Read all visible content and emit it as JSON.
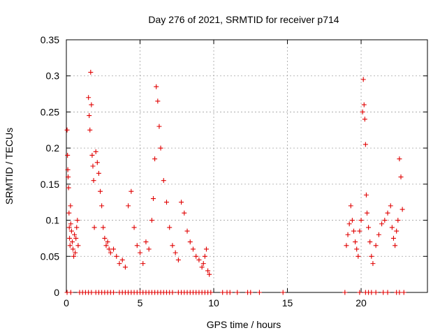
{
  "chart_data": {
    "type": "scatter",
    "title": "Day 276 of 2021, SRMTID for receiver p714",
    "xlabel": "GPS time / hours",
    "ylabel": "SRMTID / TECUs",
    "xlim": [
      0,
      24.5
    ],
    "ylim": [
      0,
      0.35
    ],
    "xticks": [
      0,
      5,
      10,
      15,
      20
    ],
    "xtick_labels": [
      "0",
      "5",
      "10",
      "15",
      "20"
    ],
    "yticks": [
      0,
      0.05,
      0.1,
      0.15,
      0.2,
      0.25,
      0.3,
      0.35
    ],
    "ytick_labels": [
      "0",
      "0.05",
      "0.1",
      "0.15",
      "0.2",
      "0.25",
      "0.3",
      "0.35"
    ],
    "grid": true,
    "marker": "+",
    "color": "#e00000",
    "series": [
      {
        "name": "SRMTID",
        "x": [
          0.05,
          0.08,
          0.1,
          0.12,
          0.15,
          0.18,
          0.2,
          0.22,
          0.25,
          0.28,
          0.3,
          0.35,
          0.4,
          0.45,
          0.5,
          0.55,
          0.6,
          0.65,
          0.7,
          0.75,
          0.8,
          1.5,
          1.55,
          1.6,
          1.65,
          1.7,
          1.75,
          1.8,
          1.85,
          1.9,
          2.0,
          2.1,
          2.2,
          2.3,
          2.4,
          2.5,
          2.6,
          2.7,
          2.8,
          2.9,
          3.0,
          3.2,
          3.4,
          3.6,
          3.8,
          4.0,
          4.2,
          4.4,
          4.6,
          4.8,
          5.0,
          5.2,
          5.4,
          5.6,
          5.8,
          5.9,
          6.0,
          6.1,
          6.2,
          6.3,
          6.4,
          6.6,
          6.8,
          7.0,
          7.2,
          7.4,
          7.6,
          7.8,
          8.0,
          8.2,
          8.4,
          8.6,
          8.8,
          9.0,
          9.2,
          9.3,
          9.4,
          9.5,
          9.6,
          9.7,
          19.0,
          19.1,
          19.2,
          19.3,
          19.4,
          19.5,
          19.6,
          19.7,
          19.8,
          19.9,
          20.0,
          20.1,
          20.15,
          20.2,
          20.25,
          20.3,
          20.35,
          20.4,
          20.5,
          20.6,
          20.7,
          20.8,
          21.0,
          21.2,
          21.4,
          21.6,
          21.8,
          22.0,
          22.1,
          22.2,
          22.3,
          22.4,
          22.5,
          22.6,
          22.7,
          22.8
        ],
        "y": [
          0.225,
          0.19,
          0.17,
          0.16,
          0.145,
          0.11,
          0.09,
          0.075,
          0.065,
          0.12,
          0.095,
          0.085,
          0.07,
          0.06,
          0.05,
          0.08,
          0.055,
          0.075,
          0.09,
          0.1,
          0.065,
          0.27,
          0.245,
          0.225,
          0.305,
          0.26,
          0.19,
          0.175,
          0.155,
          0.09,
          0.195,
          0.18,
          0.165,
          0.14,
          0.12,
          0.09,
          0.075,
          0.065,
          0.07,
          0.06,
          0.055,
          0.06,
          0.05,
          0.04,
          0.045,
          0.035,
          0.12,
          0.14,
          0.09,
          0.065,
          0.055,
          0.04,
          0.07,
          0.06,
          0.1,
          0.13,
          0.185,
          0.285,
          0.265,
          0.23,
          0.2,
          0.155,
          0.125,
          0.09,
          0.065,
          0.055,
          0.045,
          0.125,
          0.11,
          0.085,
          0.07,
          0.06,
          0.05,
          0.045,
          0.035,
          0.04,
          0.05,
          0.06,
          0.03,
          0.025,
          0.065,
          0.08,
          0.095,
          0.12,
          0.1,
          0.085,
          0.07,
          0.06,
          0.05,
          0.085,
          0.1,
          0.25,
          0.295,
          0.26,
          0.24,
          0.205,
          0.135,
          0.11,
          0.09,
          0.07,
          0.05,
          0.04,
          0.065,
          0.08,
          0.095,
          0.1,
          0.11,
          0.12,
          0.09,
          0.075,
          0.065,
          0.085,
          0.1,
          0.185,
          0.16,
          0.115
        ]
      },
      {
        "name": "zero",
        "x": [
          0.05,
          0.3,
          0.9,
          1.1,
          1.3,
          1.5,
          1.7,
          2.0,
          2.2,
          2.4,
          2.6,
          2.8,
          3.0,
          3.2,
          3.6,
          3.8,
          4.0,
          4.2,
          4.4,
          4.6,
          4.8,
          5.0,
          5.2,
          5.4,
          5.6,
          5.8,
          6.0,
          6.2,
          6.4,
          6.6,
          6.8,
          7.0,
          7.2,
          7.6,
          7.8,
          8.0,
          8.2,
          8.4,
          8.6,
          8.8,
          9.0,
          9.2,
          9.4,
          9.6,
          9.8,
          10.6,
          10.9,
          11.1,
          11.6,
          12.3,
          12.5,
          13.1,
          14.7,
          18.9,
          19.9,
          20.3,
          20.5,
          20.7,
          21.0,
          21.5,
          21.8,
          22.4,
          22.6,
          22.9
        ],
        "y": [
          0,
          0,
          0,
          0,
          0,
          0,
          0,
          0,
          0,
          0,
          0,
          0,
          0,
          0,
          0,
          0,
          0,
          0,
          0,
          0,
          0,
          0,
          0,
          0,
          0,
          0,
          0,
          0,
          0,
          0,
          0,
          0,
          0,
          0,
          0,
          0,
          0,
          0,
          0,
          0,
          0,
          0,
          0,
          0,
          0,
          0,
          0,
          0,
          0,
          0,
          0,
          0,
          0,
          0,
          0,
          0,
          0,
          0,
          0,
          0,
          0,
          0,
          0,
          0
        ]
      }
    ]
  }
}
